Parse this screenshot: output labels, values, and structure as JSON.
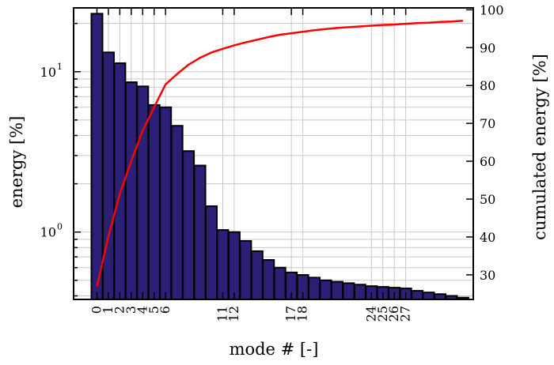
{
  "chart_data": {
    "type": "bar",
    "xlabel": "mode # [-]",
    "ylabel": "energy [%]",
    "ylabel_right": "cumulated energy [%]",
    "y_scale": "log",
    "ylim": [
      0.38,
      25
    ],
    "y_ticks": [
      {
        "base": "10",
        "exp": "0",
        "value": 1
      },
      {
        "base": "10",
        "exp": "1",
        "value": 10
      }
    ],
    "ylim_right": [
      23.5,
      100.5
    ],
    "y_right_ticks": [
      "30",
      "40",
      "50",
      "60",
      "70",
      "80",
      "90",
      "100"
    ],
    "x_tick_labels": [
      "0",
      "1",
      "2",
      "3",
      "4",
      "5",
      "6",
      "11",
      "12",
      "17",
      "18",
      "24",
      "25",
      "26",
      "27"
    ],
    "grid": true,
    "categories": [
      0,
      1,
      2,
      3,
      4,
      5,
      6,
      7,
      8,
      9,
      10,
      11,
      12,
      13,
      14,
      15,
      16,
      17,
      18,
      19,
      20,
      21,
      22,
      23,
      24,
      25,
      26,
      27,
      28,
      29,
      30,
      31,
      32
    ],
    "series": [
      {
        "values": [
          23.0,
          13.2,
          11.3,
          8.6,
          8.1,
          6.2,
          6.0,
          4.6,
          3.2,
          2.6,
          1.45,
          1.03,
          1.0,
          0.88,
          0.76,
          0.67,
          0.6,
          0.56,
          0.54,
          0.52,
          0.5,
          0.49,
          0.48,
          0.47,
          0.46,
          0.455,
          0.45,
          0.445,
          0.43,
          0.42,
          0.41,
          0.4,
          0.39
        ]
      },
      {
        "values": [
          26.9,
          40.1,
          51.4,
          60.0,
          68.1,
          74.3,
          80.3,
          83.0,
          85.5,
          87.3,
          88.7,
          89.7,
          90.6,
          91.4,
          92.1,
          92.8,
          93.4,
          93.8,
          94.2,
          94.6,
          94.9,
          95.2,
          95.4,
          95.6,
          95.8,
          96.0,
          96.1,
          96.3,
          96.5,
          96.6,
          96.8,
          96.9,
          97.1
        ],
        "color": "#ff0000"
      }
    ]
  }
}
